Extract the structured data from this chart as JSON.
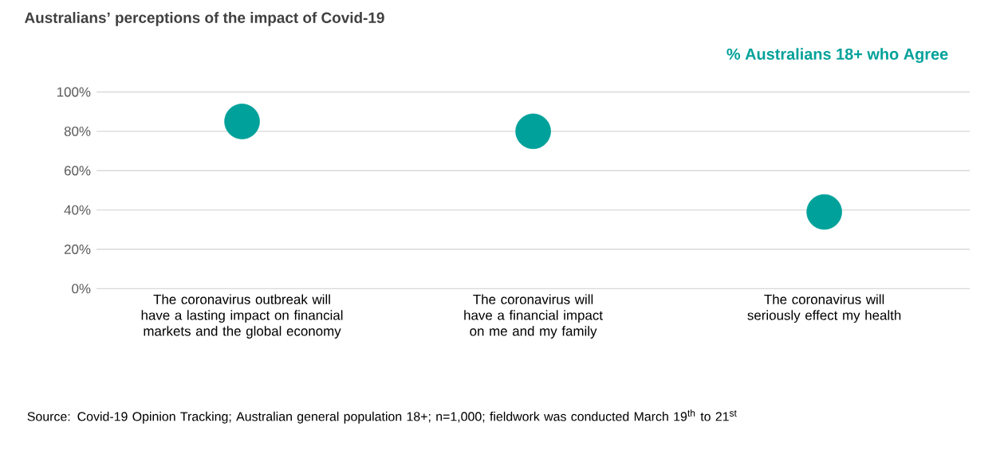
{
  "chart_data": {
    "type": "scatter",
    "title": "Australians’ perceptions of the impact of Covid-19",
    "categories": [
      "The coronavirus outbreak will have a lasting impact on financial markets and the global economy",
      "The coronavirus will have a financial impact on me and my family",
      "The coronavirus will seriously effect my health"
    ],
    "series": [
      {
        "name": "% Australians 18+ who Agree",
        "color": "#00a19a",
        "values": [
          85,
          80,
          39
        ]
      }
    ],
    "ylim": [
      0,
      100
    ],
    "yticks": [
      {
        "value": 0,
        "label": "0%"
      },
      {
        "value": 20,
        "label": "20%"
      },
      {
        "value": 40,
        "label": "40%"
      },
      {
        "value": 60,
        "label": "60%"
      },
      {
        "value": 80,
        "label": "80%"
      },
      {
        "value": 100,
        "label": "100%"
      }
    ],
    "grid": "y",
    "annotations": [
      "Source: Covid-19 Opinion Tracking; Australian general population 18+; n=1,000; fieldwork was conducted March 19$^{th}$ to 21$^{st}$"
    ]
  }
}
